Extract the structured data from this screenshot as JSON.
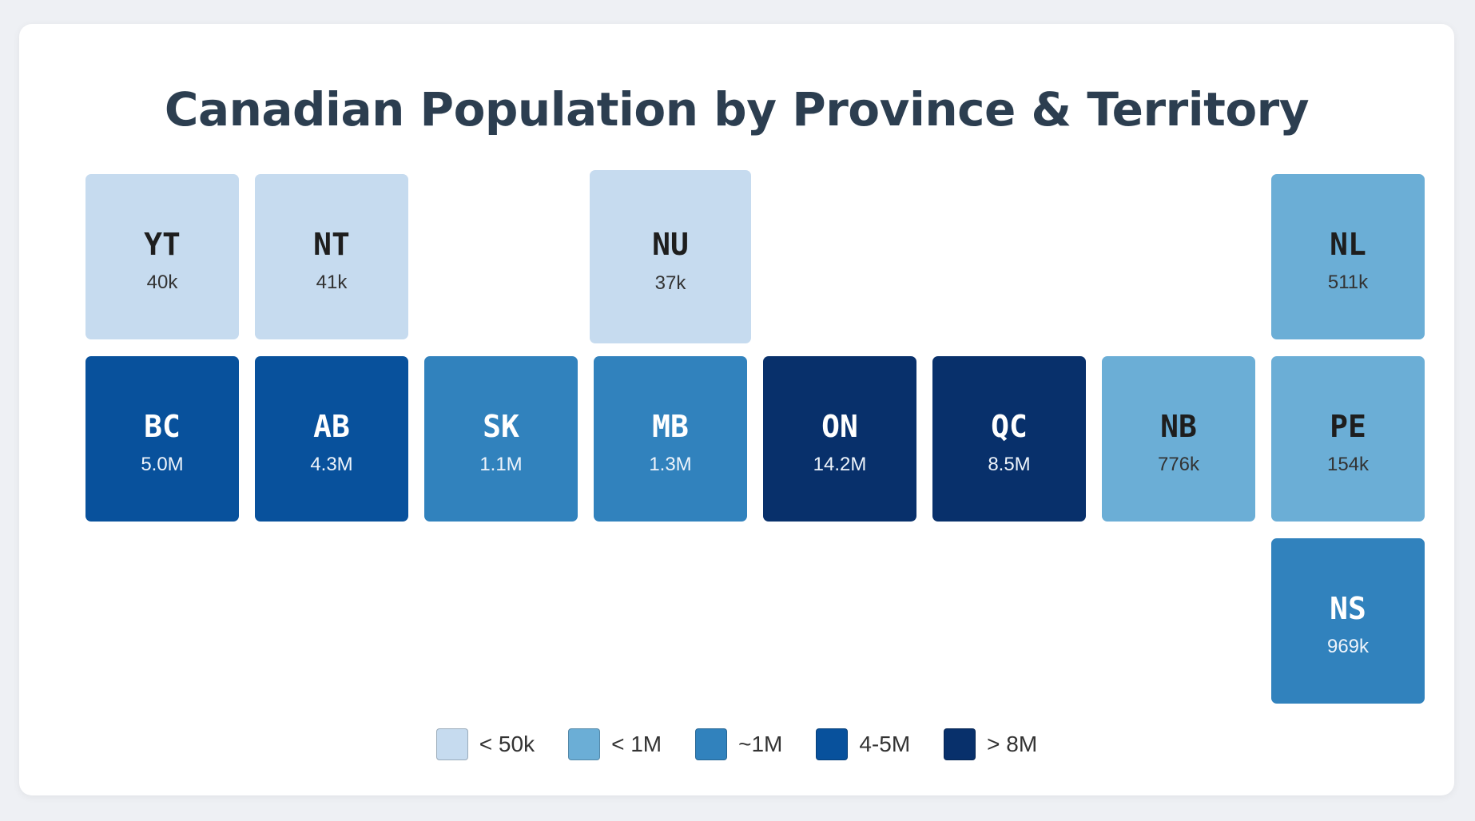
{
  "title": "Canadian Population by Province & Territory",
  "regions": [
    {
      "abbr": "YT",
      "population": "40k",
      "band": "c1"
    },
    {
      "abbr": "NT",
      "population": "41k",
      "band": "c1"
    },
    {
      "abbr": "NU",
      "population": "37k",
      "band": "c1"
    },
    {
      "abbr": "NL",
      "population": "511k",
      "band": "c2"
    },
    {
      "abbr": "BC",
      "population": "5.0M",
      "band": "c4"
    },
    {
      "abbr": "AB",
      "population": "4.3M",
      "band": "c4"
    },
    {
      "abbr": "SK",
      "population": "1.1M",
      "band": "c3"
    },
    {
      "abbr": "MB",
      "population": "1.3M",
      "band": "c3"
    },
    {
      "abbr": "ON",
      "population": "14.2M",
      "band": "c5"
    },
    {
      "abbr": "QC",
      "population": "8.5M",
      "band": "c5"
    },
    {
      "abbr": "NB",
      "population": "776k",
      "band": "c2"
    },
    {
      "abbr": "PE",
      "population": "154k",
      "band": "c2"
    },
    {
      "abbr": "NS",
      "population": "969k",
      "band": "c3"
    }
  ],
  "legend": [
    {
      "label": "< 50k",
      "color": "#c6dbef"
    },
    {
      "label": "< 1M",
      "color": "#6baed6"
    },
    {
      "label": "~1M",
      "color": "#3182bd"
    },
    {
      "label": "4-5M",
      "color": "#08519c"
    },
    {
      "label": "> 8M",
      "color": "#08306b"
    }
  ]
}
